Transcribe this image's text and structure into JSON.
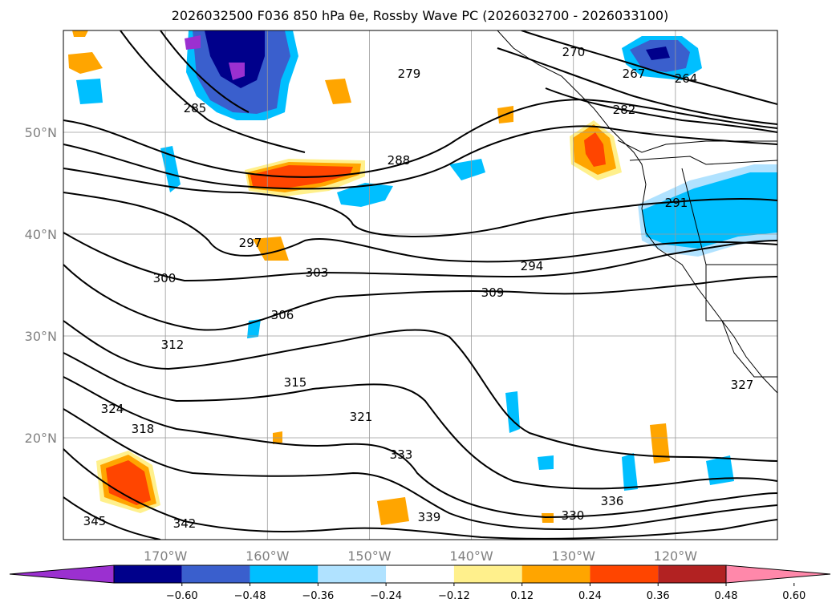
{
  "title": "2026032500 F036 850 hPa θe, Rossby Wave PC (2026032700 - 2026033100)",
  "map": {
    "lon_range": [
      -180,
      -110
    ],
    "lat_range": [
      10,
      60
    ],
    "lat_labels": [
      "20°N",
      "30°N",
      "40°N",
      "50°N"
    ],
    "lat_values": [
      20,
      30,
      40,
      50
    ],
    "lon_labels": [
      "170°W",
      "160°W",
      "150°W",
      "140°W",
      "130°W",
      "120°W"
    ],
    "lon_values": [
      -170,
      -160,
      -150,
      -140,
      -130,
      -120
    ],
    "grid": true,
    "contour_labels": [
      "270",
      "267",
      "264",
      "279",
      "285",
      "282",
      "288",
      "291",
      "297",
      "300",
      "294",
      "303",
      "306",
      "309",
      "312",
      "315",
      "318",
      "321",
      "324",
      "327",
      "330",
      "333",
      "336",
      "339",
      "342",
      "345"
    ]
  },
  "colorbar": {
    "ticks": [
      "−0.60",
      "−0.48",
      "−0.36",
      "−0.24",
      "−0.12",
      "0.12",
      "0.24",
      "0.36",
      "0.48",
      "0.60"
    ],
    "colors": [
      "#9b30d0",
      "#00008b",
      "#3a5fcd",
      "#00bfff",
      "#b0e2ff",
      "#ffffff",
      "#fff08c",
      "#ffa500",
      "#ff4500",
      "#b22222",
      "#ff88aa"
    ],
    "extend": "both"
  }
}
